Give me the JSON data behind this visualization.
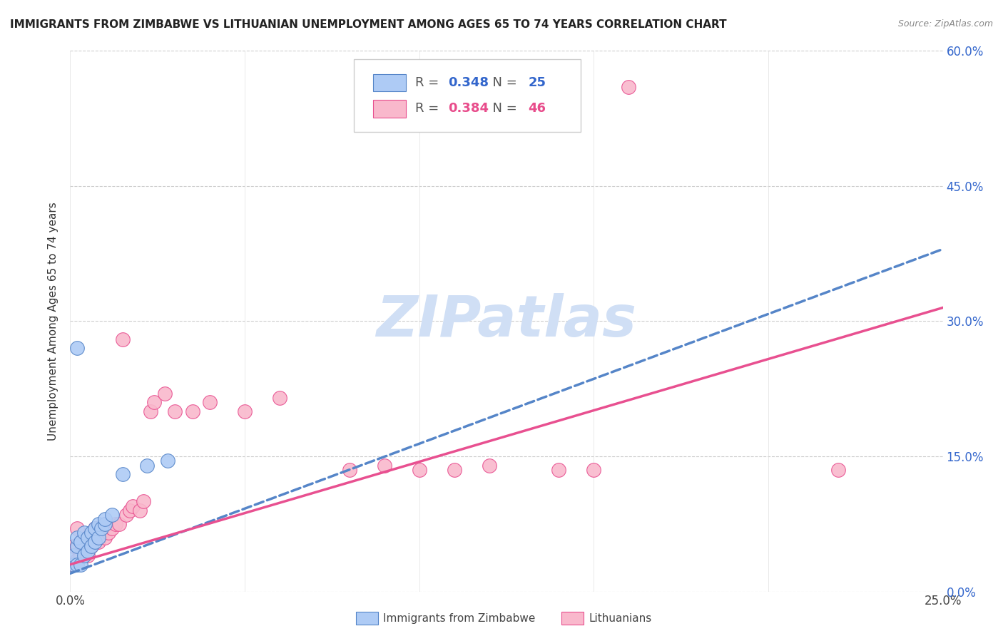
{
  "title": "IMMIGRANTS FROM ZIMBABWE VS LITHUANIAN UNEMPLOYMENT AMONG AGES 65 TO 74 YEARS CORRELATION CHART",
  "source": "Source: ZipAtlas.com",
  "ylabel": "Unemployment Among Ages 65 to 74 years",
  "xlim": [
    0.0,
    0.25
  ],
  "ylim": [
    0.0,
    0.6
  ],
  "xticks": [
    0.0,
    0.05,
    0.1,
    0.15,
    0.2,
    0.25
  ],
  "yticks": [
    0.0,
    0.15,
    0.3,
    0.45,
    0.6
  ],
  "yticklabels_right": [
    "0.0%",
    "15.0%",
    "30.0%",
    "45.0%",
    "60.0%"
  ],
  "series1_label": "Immigrants from Zimbabwe",
  "series2_label": "Lithuanians",
  "series1_R": "0.348",
  "series1_N": "25",
  "series2_R": "0.384",
  "series2_N": "46",
  "series1_color": "#aecbf5",
  "series2_color": "#f9b8cc",
  "trendline1_color": "#5585c8",
  "trendline2_color": "#e85090",
  "watermark_text": "ZIPatlas",
  "watermark_color": "#d0dff5",
  "series1_x": [
    0.001,
    0.001,
    0.002,
    0.002,
    0.002,
    0.003,
    0.003,
    0.004,
    0.004,
    0.005,
    0.005,
    0.006,
    0.006,
    0.007,
    0.007,
    0.008,
    0.008,
    0.009,
    0.01,
    0.01,
    0.012,
    0.015,
    0.022,
    0.028,
    0.002
  ],
  "series1_y": [
    0.03,
    0.04,
    0.03,
    0.05,
    0.06,
    0.03,
    0.055,
    0.04,
    0.065,
    0.045,
    0.06,
    0.05,
    0.065,
    0.055,
    0.07,
    0.06,
    0.075,
    0.07,
    0.075,
    0.08,
    0.085,
    0.13,
    0.14,
    0.145,
    0.27
  ],
  "series2_x": [
    0.001,
    0.001,
    0.002,
    0.002,
    0.003,
    0.003,
    0.004,
    0.005,
    0.005,
    0.006,
    0.006,
    0.007,
    0.007,
    0.008,
    0.008,
    0.009,
    0.01,
    0.01,
    0.011,
    0.012,
    0.013,
    0.014,
    0.015,
    0.016,
    0.017,
    0.018,
    0.02,
    0.021,
    0.023,
    0.024,
    0.027,
    0.03,
    0.035,
    0.04,
    0.05,
    0.06,
    0.08,
    0.09,
    0.1,
    0.11,
    0.12,
    0.14,
    0.15,
    0.16,
    0.22,
    0.002
  ],
  "series2_y": [
    0.03,
    0.05,
    0.035,
    0.05,
    0.04,
    0.055,
    0.05,
    0.04,
    0.06,
    0.05,
    0.065,
    0.055,
    0.07,
    0.055,
    0.07,
    0.065,
    0.06,
    0.075,
    0.065,
    0.07,
    0.075,
    0.075,
    0.28,
    0.085,
    0.09,
    0.095,
    0.09,
    0.1,
    0.2,
    0.21,
    0.22,
    0.2,
    0.2,
    0.21,
    0.2,
    0.215,
    0.135,
    0.14,
    0.135,
    0.135,
    0.14,
    0.135,
    0.135,
    0.56,
    0.135,
    0.07
  ],
  "trendline1_x0": 0.0,
  "trendline1_y0": 0.02,
  "trendline1_x1": 0.25,
  "trendline1_y1": 0.38,
  "trendline2_x0": 0.0,
  "trendline2_y0": 0.03,
  "trendline2_x1": 0.25,
  "trendline2_y1": 0.315
}
